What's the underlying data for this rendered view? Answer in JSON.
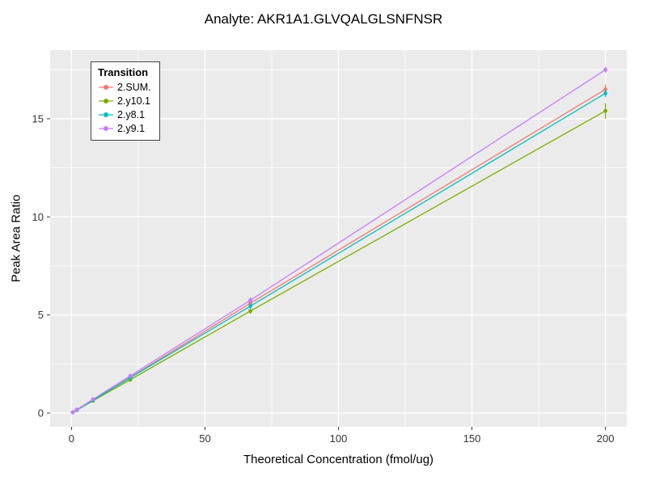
{
  "chart_data": {
    "type": "scatter",
    "title": "Analyte: AKR1A1.GLVQALGLSNFNSR",
    "xlabel": "Theoretical Concentration (fmol/ug)",
    "ylabel": "Peak Area Ratio",
    "legend_title": "Transition",
    "legend_position": "top-left",
    "grid": true,
    "xlim": [
      -8,
      208
    ],
    "ylim": [
      -0.7,
      18.5
    ],
    "xticks": [
      0,
      50,
      100,
      150,
      200
    ],
    "xminor": [
      25,
      75,
      125,
      175
    ],
    "yticks": [
      0,
      5,
      10,
      15
    ],
    "yminor": [
      2.5,
      7.5,
      12.5,
      17.5
    ],
    "x": [
      0.5,
      2,
      8,
      22,
      67,
      200
    ],
    "series": [
      {
        "name": "2.SUM.",
        "color": "#F8766D",
        "values": [
          0.04,
          0.17,
          0.66,
          1.82,
          5.6,
          16.5
        ],
        "errors": [
          0.02,
          0.03,
          0.05,
          0.12,
          0.18,
          0.25
        ]
      },
      {
        "name": "2.y10.1",
        "color": "#7CAE00",
        "values": [
          0.04,
          0.15,
          0.62,
          1.7,
          5.2,
          15.4
        ],
        "errors": [
          0.02,
          0.02,
          0.04,
          0.1,
          0.15,
          0.4
        ]
      },
      {
        "name": "2.y8.1",
        "color": "#00BFC4",
        "values": [
          0.04,
          0.16,
          0.65,
          1.8,
          5.45,
          16.3
        ],
        "errors": [
          0.02,
          0.02,
          0.04,
          0.1,
          0.15,
          0.2
        ]
      },
      {
        "name": "2.y9.1",
        "color": "#C77CFF",
        "values": [
          0.04,
          0.18,
          0.7,
          1.9,
          5.75,
          17.5
        ],
        "errors": [
          0.02,
          0.02,
          0.04,
          0.1,
          0.15,
          0.15
        ]
      }
    ]
  },
  "colors": {
    "panel_bg": "#EBEBEB",
    "grid_major": "#FFFFFF",
    "grid_minor": "#FFFFFF",
    "tick_text": "#333333",
    "tick_mark": "#333333"
  }
}
